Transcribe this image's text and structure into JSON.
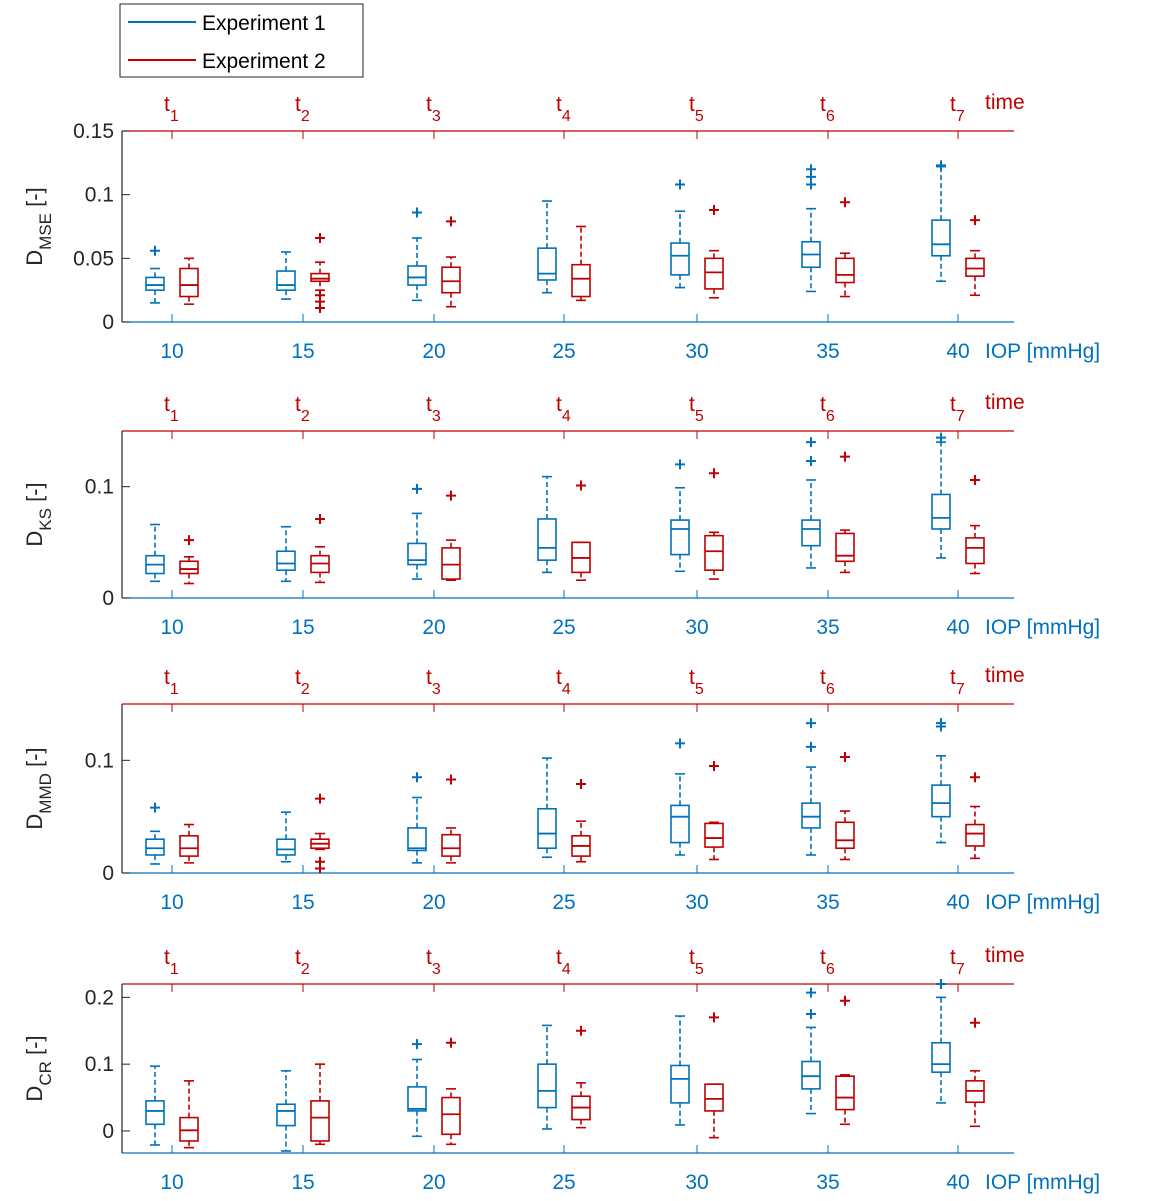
{
  "legend": {
    "items": [
      {
        "label": "Experiment 1",
        "color": "#0072bd"
      },
      {
        "label": "Experiment 2",
        "color": "#c00000"
      }
    ]
  },
  "chart_data": [
    {
      "type": "box",
      "ylabel_main": "D",
      "ylabel_sub": "MSE",
      "ylabel_rest": " [-]",
      "xlabel": "IOP [mmHg]",
      "x2label": "time",
      "categories": [
        "10",
        "15",
        "20",
        "25",
        "30",
        "35",
        "40"
      ],
      "time_labels": [
        "t1",
        "t2",
        "t3",
        "t4",
        "t5",
        "t6",
        "t7"
      ],
      "ylim": [
        0,
        0.15
      ],
      "yticks": [
        0,
        0.05,
        0.1,
        0.15
      ],
      "ytick_labels": [
        "0",
        "0.05",
        "0.1",
        "0.15"
      ],
      "series": [
        {
          "name": "Experiment 1",
          "color": "#0072bd",
          "boxes": [
            {
              "min": 0.015,
              "q1": 0.025,
              "median": 0.029,
              "q3": 0.035,
              "max": 0.042,
              "outliers": [
                0.056
              ]
            },
            {
              "min": 0.018,
              "q1": 0.025,
              "median": 0.029,
              "q3": 0.04,
              "max": 0.055,
              "outliers": []
            },
            {
              "min": 0.017,
              "q1": 0.029,
              "median": 0.035,
              "q3": 0.044,
              "max": 0.066,
              "outliers": [
                0.086
              ]
            },
            {
              "min": 0.023,
              "q1": 0.033,
              "median": 0.038,
              "q3": 0.058,
              "max": 0.095,
              "outliers": []
            },
            {
              "min": 0.027,
              "q1": 0.037,
              "median": 0.052,
              "q3": 0.062,
              "max": 0.087,
              "outliers": [
                0.108
              ]
            },
            {
              "min": 0.024,
              "q1": 0.043,
              "median": 0.053,
              "q3": 0.063,
              "max": 0.089,
              "outliers": [
                0.108,
                0.114,
                0.12
              ]
            },
            {
              "min": 0.032,
              "q1": 0.052,
              "median": 0.061,
              "q3": 0.08,
              "max": 0.122,
              "outliers": [
                0.123
              ]
            }
          ]
        },
        {
          "name": "Experiment 2",
          "color": "#c00000",
          "boxes": [
            {
              "min": 0.014,
              "q1": 0.02,
              "median": 0.029,
              "q3": 0.042,
              "max": 0.05,
              "outliers": []
            },
            {
              "min": 0.025,
              "q1": 0.032,
              "median": 0.034,
              "q3": 0.038,
              "max": 0.047,
              "outliers": [
                0.066,
                0.011,
                0.016,
                0.021
              ]
            },
            {
              "min": 0.012,
              "q1": 0.023,
              "median": 0.032,
              "q3": 0.043,
              "max": 0.051,
              "outliers": [
                0.079
              ]
            },
            {
              "min": 0.017,
              "q1": 0.02,
              "median": 0.034,
              "q3": 0.045,
              "max": 0.075,
              "outliers": []
            },
            {
              "min": 0.019,
              "q1": 0.026,
              "median": 0.039,
              "q3": 0.05,
              "max": 0.056,
              "outliers": [
                0.088
              ]
            },
            {
              "min": 0.02,
              "q1": 0.031,
              "median": 0.037,
              "q3": 0.05,
              "max": 0.054,
              "outliers": [
                0.094
              ]
            },
            {
              "min": 0.021,
              "q1": 0.036,
              "median": 0.042,
              "q3": 0.05,
              "max": 0.056,
              "outliers": [
                0.08
              ]
            }
          ]
        }
      ]
    },
    {
      "type": "box",
      "ylabel_main": "D",
      "ylabel_sub": "KS",
      "ylabel_rest": " [-]",
      "xlabel": "IOP [mmHg]",
      "x2label": "time",
      "categories": [
        "10",
        "15",
        "20",
        "25",
        "30",
        "35",
        "40"
      ],
      "time_labels": [
        "t1",
        "t2",
        "t3",
        "t4",
        "t5",
        "t6",
        "t7"
      ],
      "ylim": [
        0,
        0.15
      ],
      "yticks": [
        0,
        0.1
      ],
      "ytick_labels": [
        "0",
        "0.1"
      ],
      "series": [
        {
          "name": "Experiment 1",
          "color": "#0072bd",
          "boxes": [
            {
              "min": 0.015,
              "q1": 0.022,
              "median": 0.03,
              "q3": 0.038,
              "max": 0.066,
              "outliers": []
            },
            {
              "min": 0.015,
              "q1": 0.025,
              "median": 0.031,
              "q3": 0.042,
              "max": 0.064,
              "outliers": []
            },
            {
              "min": 0.017,
              "q1": 0.03,
              "median": 0.034,
              "q3": 0.049,
              "max": 0.076,
              "outliers": [
                0.098
              ]
            },
            {
              "min": 0.023,
              "q1": 0.034,
              "median": 0.045,
              "q3": 0.071,
              "max": 0.109,
              "outliers": []
            },
            {
              "min": 0.024,
              "q1": 0.039,
              "median": 0.062,
              "q3": 0.07,
              "max": 0.099,
              "outliers": [
                0.12
              ]
            },
            {
              "min": 0.027,
              "q1": 0.047,
              "median": 0.062,
              "q3": 0.07,
              "max": 0.106,
              "outliers": [
                0.123,
                0.14
              ]
            },
            {
              "min": 0.036,
              "q1": 0.062,
              "median": 0.072,
              "q3": 0.093,
              "max": 0.14,
              "outliers": [
                0.144
              ]
            }
          ]
        },
        {
          "name": "Experiment 2",
          "color": "#c00000",
          "boxes": [
            {
              "min": 0.013,
              "q1": 0.022,
              "median": 0.026,
              "q3": 0.033,
              "max": 0.037,
              "outliers": [
                0.052
              ]
            },
            {
              "min": 0.014,
              "q1": 0.023,
              "median": 0.031,
              "q3": 0.038,
              "max": 0.046,
              "outliers": [
                0.071
              ]
            },
            {
              "min": 0.016,
              "q1": 0.017,
              "median": 0.03,
              "q3": 0.045,
              "max": 0.052,
              "outliers": [
                0.092
              ]
            },
            {
              "min": 0.016,
              "q1": 0.023,
              "median": 0.036,
              "q3": 0.05,
              "max": 0.05,
              "outliers": [
                0.101
              ]
            },
            {
              "min": 0.017,
              "q1": 0.025,
              "median": 0.042,
              "q3": 0.056,
              "max": 0.059,
              "outliers": [
                0.112
              ]
            },
            {
              "min": 0.023,
              "q1": 0.033,
              "median": 0.038,
              "q3": 0.058,
              "max": 0.061,
              "outliers": [
                0.127
              ]
            },
            {
              "min": 0.022,
              "q1": 0.031,
              "median": 0.045,
              "q3": 0.054,
              "max": 0.065,
              "outliers": [
                0.106
              ]
            }
          ]
        }
      ]
    },
    {
      "type": "box",
      "ylabel_main": "D",
      "ylabel_sub": "MMD",
      "ylabel_rest": " [-]",
      "xlabel": "IOP [mmHg]",
      "x2label": "time",
      "categories": [
        "10",
        "15",
        "20",
        "25",
        "30",
        "35",
        "40"
      ],
      "time_labels": [
        "t1",
        "t2",
        "t3",
        "t4",
        "t5",
        "t6",
        "t7"
      ],
      "ylim": [
        0,
        0.15
      ],
      "yticks": [
        0,
        0.1
      ],
      "ytick_labels": [
        "0",
        "0.1"
      ],
      "series": [
        {
          "name": "Experiment 1",
          "color": "#0072bd",
          "boxes": [
            {
              "min": 0.008,
              "q1": 0.016,
              "median": 0.022,
              "q3": 0.03,
              "max": 0.037,
              "outliers": [
                0.058
              ]
            },
            {
              "min": 0.01,
              "q1": 0.016,
              "median": 0.021,
              "q3": 0.03,
              "max": 0.054,
              "outliers": []
            },
            {
              "min": 0.009,
              "q1": 0.02,
              "median": 0.022,
              "q3": 0.04,
              "max": 0.067,
              "outliers": [
                0.085
              ]
            },
            {
              "min": 0.014,
              "q1": 0.022,
              "median": 0.035,
              "q3": 0.057,
              "max": 0.102,
              "outliers": []
            },
            {
              "min": 0.016,
              "q1": 0.027,
              "median": 0.05,
              "q3": 0.06,
              "max": 0.088,
              "outliers": [
                0.115
              ]
            },
            {
              "min": 0.016,
              "q1": 0.04,
              "median": 0.05,
              "q3": 0.062,
              "max": 0.094,
              "outliers": [
                0.112,
                0.133
              ]
            },
            {
              "min": 0.027,
              "q1": 0.05,
              "median": 0.062,
              "q3": 0.078,
              "max": 0.104,
              "outliers": [
                0.13,
                0.133
              ]
            }
          ]
        },
        {
          "name": "Experiment 2",
          "color": "#c00000",
          "boxes": [
            {
              "min": 0.009,
              "q1": 0.015,
              "median": 0.022,
              "q3": 0.033,
              "max": 0.043,
              "outliers": []
            },
            {
              "min": 0.021,
              "q1": 0.022,
              "median": 0.026,
              "q3": 0.03,
              "max": 0.035,
              "outliers": [
                0.066,
                0.004,
                0.01
              ]
            },
            {
              "min": 0.009,
              "q1": 0.015,
              "median": 0.022,
              "q3": 0.034,
              "max": 0.04,
              "outliers": [
                0.083
              ]
            },
            {
              "min": 0.01,
              "q1": 0.015,
              "median": 0.024,
              "q3": 0.033,
              "max": 0.046,
              "outliers": [
                0.079
              ]
            },
            {
              "min": 0.012,
              "q1": 0.023,
              "median": 0.031,
              "q3": 0.044,
              "max": 0.045,
              "outliers": [
                0.095
              ]
            },
            {
              "min": 0.012,
              "q1": 0.022,
              "median": 0.029,
              "q3": 0.045,
              "max": 0.055,
              "outliers": [
                0.103
              ]
            },
            {
              "min": 0.013,
              "q1": 0.024,
              "median": 0.035,
              "q3": 0.043,
              "max": 0.059,
              "outliers": [
                0.085
              ]
            }
          ]
        }
      ]
    },
    {
      "type": "box",
      "ylabel_main": "D",
      "ylabel_sub": "CR",
      "ylabel_rest": " [-]",
      "xlabel": "IOP [mmHg]",
      "x2label": "time",
      "categories": [
        "10",
        "15",
        "20",
        "25",
        "30",
        "35",
        "40"
      ],
      "time_labels": [
        "t1",
        "t2",
        "t3",
        "t4",
        "t5",
        "t6",
        "t7"
      ],
      "ylim": [
        -0.033,
        0.22
      ],
      "yticks": [
        0,
        0.1,
        0.2
      ],
      "ytick_labels": [
        "0",
        "0.1",
        "0.2"
      ],
      "series": [
        {
          "name": "Experiment 1",
          "color": "#0072bd",
          "boxes": [
            {
              "min": -0.021,
              "q1": 0.01,
              "median": 0.03,
              "q3": 0.045,
              "max": 0.097,
              "outliers": []
            },
            {
              "min": -0.03,
              "q1": 0.008,
              "median": 0.03,
              "q3": 0.04,
              "max": 0.09,
              "outliers": []
            },
            {
              "min": -0.008,
              "q1": 0.03,
              "median": 0.033,
              "q3": 0.066,
              "max": 0.107,
              "outliers": [
                0.13
              ]
            },
            {
              "min": 0.003,
              "q1": 0.035,
              "median": 0.06,
              "q3": 0.1,
              "max": 0.158,
              "outliers": []
            },
            {
              "min": 0.009,
              "q1": 0.042,
              "median": 0.078,
              "q3": 0.098,
              "max": 0.172,
              "outliers": []
            },
            {
              "min": 0.026,
              "q1": 0.063,
              "median": 0.082,
              "q3": 0.104,
              "max": 0.155,
              "outliers": [
                0.175,
                0.207
              ]
            },
            {
              "min": 0.042,
              "q1": 0.088,
              "median": 0.1,
              "q3": 0.132,
              "max": 0.2,
              "outliers": [
                0.22
              ]
            }
          ]
        },
        {
          "name": "Experiment 2",
          "color": "#c00000",
          "boxes": [
            {
              "min": -0.025,
              "q1": -0.015,
              "median": 0.001,
              "q3": 0.02,
              "max": 0.075,
              "outliers": []
            },
            {
              "min": -0.02,
              "q1": -0.015,
              "median": 0.02,
              "q3": 0.045,
              "max": 0.1,
              "outliers": []
            },
            {
              "min": -0.02,
              "q1": -0.005,
              "median": 0.025,
              "q3": 0.05,
              "max": 0.063,
              "outliers": [
                0.132
              ]
            },
            {
              "min": 0.005,
              "q1": 0.017,
              "median": 0.035,
              "q3": 0.052,
              "max": 0.072,
              "outliers": [
                0.15
              ]
            },
            {
              "min": -0.01,
              "q1": 0.03,
              "median": 0.048,
              "q3": 0.07,
              "max": 0.07,
              "outliers": [
                0.17
              ]
            },
            {
              "min": 0.01,
              "q1": 0.032,
              "median": 0.05,
              "q3": 0.082,
              "max": 0.084,
              "outliers": [
                0.195
              ]
            },
            {
              "min": 0.007,
              "q1": 0.043,
              "median": 0.06,
              "q3": 0.075,
              "max": 0.09,
              "outliers": [
                0.162
              ]
            }
          ]
        }
      ]
    }
  ]
}
